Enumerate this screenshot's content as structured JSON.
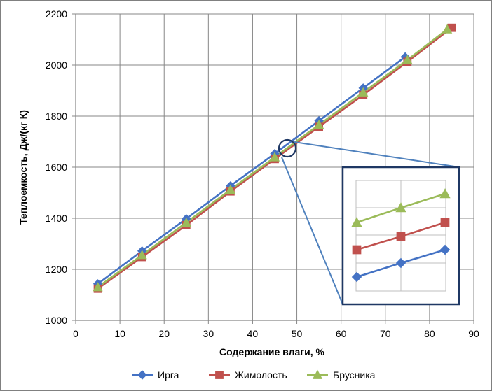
{
  "chart_data": {
    "type": "line",
    "title": "",
    "xlabel": "Содержание влаги, %",
    "ylabel": "Теплоемкость, Дж/(кг К)",
    "xlim": [
      0,
      90
    ],
    "ylim": [
      1000,
      2200
    ],
    "x_ticks": [
      0,
      10,
      20,
      30,
      40,
      50,
      60,
      70,
      80,
      90
    ],
    "y_ticks": [
      1000,
      1200,
      1400,
      1600,
      1800,
      2000,
      2200
    ],
    "grid": true,
    "legend_position": "bottom",
    "series": [
      {
        "name": "Ирга",
        "color": "#4472C4",
        "marker": "diamond",
        "x": [
          5,
          15,
          25,
          35,
          45,
          55,
          65,
          74.5
        ],
        "y": [
          1143,
          1272,
          1398,
          1527,
          1653,
          1782,
          1910,
          2032
        ]
      },
      {
        "name": "Жимолость",
        "color": "#C0504D",
        "marker": "square",
        "x": [
          5,
          15,
          25,
          35,
          45,
          55,
          65,
          75,
          85
        ],
        "y": [
          1124,
          1248,
          1373,
          1505,
          1632,
          1758,
          1883,
          2013,
          2146
        ]
      },
      {
        "name": "Брусника",
        "color": "#9BBB59",
        "marker": "triangle",
        "x": [
          5,
          15,
          25,
          35,
          45,
          55,
          65,
          75,
          84
        ],
        "y": [
          1130,
          1256,
          1383,
          1512,
          1639,
          1766,
          1893,
          2020,
          2140
        ]
      }
    ],
    "inset": {
      "description_zoom_area": "zoomed view of region near 48%",
      "note": "magnified view of series near x≈48",
      "points": {
        "Ирга": [
          0,
          1,
          2
        ],
        "Жимолость": [
          0,
          1,
          2
        ],
        "Брусника": [
          0,
          1,
          2
        ]
      }
    }
  }
}
